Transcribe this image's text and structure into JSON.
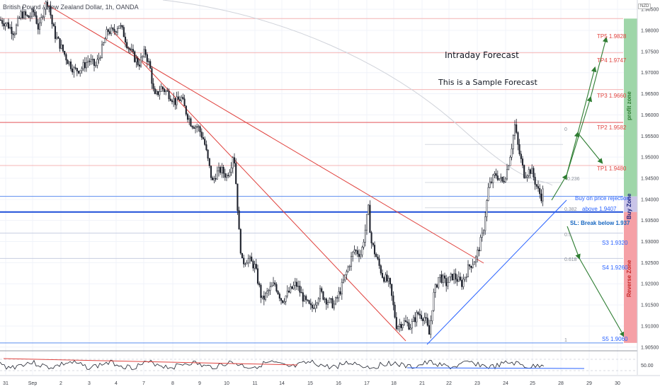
{
  "chart_data": {
    "type": "candlestick",
    "symbol_title": "British Pound / New Zealand Dollar, 1h, OANDA",
    "currency": "NZD",
    "ylim": [
      1.9048,
      1.9872
    ],
    "price_ticks": [
      "1.98500",
      "1.98000",
      "1.97500",
      "1.97000",
      "1.96500",
      "1.96000",
      "1.95500",
      "1.95000",
      "1.94500",
      "1.94000",
      "1.93500",
      "1.93000",
      "1.92500",
      "1.92000",
      "1.91500",
      "1.91000",
      "1.90500"
    ],
    "time_ticks": [
      "31",
      "Sep",
      "2",
      "3",
      "4",
      "7",
      "8",
      "9",
      "10",
      "11",
      "14",
      "15",
      "16",
      "17",
      "18",
      "21",
      "22",
      "23",
      "24",
      "25",
      "28",
      "29",
      "30"
    ],
    "price_path": [
      [
        0,
        1.9825
      ],
      [
        10,
        1.9815
      ],
      [
        20,
        1.9795
      ],
      [
        30,
        1.984
      ],
      [
        40,
        1.983
      ],
      [
        48,
        1.9845
      ],
      [
        55,
        1.98
      ],
      [
        62,
        1.9855
      ],
      [
        68,
        1.987
      ],
      [
        74,
        1.9812
      ],
      [
        78,
        1.9788
      ],
      [
        85,
        1.9765
      ],
      [
        95,
        1.973
      ],
      [
        105,
        1.9705
      ],
      [
        115,
        1.971
      ],
      [
        125,
        1.973
      ],
      [
        135,
        1.9715
      ],
      [
        145,
        1.976
      ],
      [
        152,
        1.98
      ],
      [
        160,
        1.9795
      ],
      [
        168,
        1.9815
      ],
      [
        175,
        1.979
      ],
      [
        180,
        1.9765
      ],
      [
        188,
        1.974
      ],
      [
        196,
        1.972
      ],
      [
        205,
        1.975
      ],
      [
        212,
        1.971
      ],
      [
        218,
        1.964
      ],
      [
        228,
        1.9665
      ],
      [
        238,
        1.965
      ],
      [
        248,
        1.963
      ],
      [
        256,
        1.964
      ],
      [
        262,
        1.961
      ],
      [
        270,
        1.958
      ],
      [
        280,
        1.957
      ],
      [
        288,
        1.954
      ],
      [
        295,
        1.948
      ],
      [
        300,
        1.944
      ],
      [
        305,
        1.946
      ],
      [
        312,
        1.947
      ],
      [
        320,
        1.9455
      ],
      [
        326,
        1.948
      ],
      [
        330,
        1.9515
      ],
      [
        334,
        1.942
      ],
      [
        338,
        1.931
      ],
      [
        342,
        1.925
      ],
      [
        350,
        1.926
      ],
      [
        360,
        1.924
      ],
      [
        370,
        1.916
      ],
      [
        378,
        1.918
      ],
      [
        388,
        1.92
      ],
      [
        398,
        1.916
      ],
      [
        408,
        1.918
      ],
      [
        418,
        1.92
      ],
      [
        430,
        1.916
      ],
      [
        440,
        1.914
      ],
      [
        452,
        1.918
      ],
      [
        462,
        1.916
      ],
      [
        472,
        1.915
      ],
      [
        482,
        1.919
      ],
      [
        492,
        1.924
      ],
      [
        500,
        1.928
      ],
      [
        510,
        1.927
      ],
      [
        516,
        1.933
      ],
      [
        520,
        1.938
      ],
      [
        524,
        1.93
      ],
      [
        530,
        1.927
      ],
      [
        540,
        1.922
      ],
      [
        550,
        1.92
      ],
      [
        560,
        1.91
      ],
      [
        570,
        1.911
      ],
      [
        580,
        1.91
      ],
      [
        590,
        1.913
      ],
      [
        600,
        1.912
      ],
      [
        606,
        1.908
      ],
      [
        612,
        1.917
      ],
      [
        620,
        1.922
      ],
      [
        630,
        1.92
      ],
      [
        640,
        1.922
      ],
      [
        652,
        1.92
      ],
      [
        662,
        1.924
      ],
      [
        672,
        1.926
      ],
      [
        682,
        1.932
      ],
      [
        690,
        1.943
      ],
      [
        700,
        1.946
      ],
      [
        710,
        1.944
      ],
      [
        716,
        1.947
      ],
      [
        722,
        1.952
      ],
      [
        727,
        1.9575
      ],
      [
        732,
        1.952
      ],
      [
        740,
        1.946
      ],
      [
        750,
        1.947
      ],
      [
        760,
        1.942
      ],
      [
        765,
        1.9405
      ],
      [
        768,
        1.943
      ]
    ],
    "levels": [
      {
        "name": "TP5",
        "label": "TP5 1.9828",
        "value": 1.9828
      },
      {
        "name": "TP4",
        "label": "TP4 1.9747",
        "value": 1.9747
      },
      {
        "name": "TP3",
        "label": "TP3 1.9660",
        "value": 1.966
      },
      {
        "name": "TP2",
        "label": "TP2 1.9582",
        "value": 1.9582
      },
      {
        "name": "TP1",
        "label": "TP1 1.9480",
        "value": 1.948
      },
      {
        "name": "Entry",
        "label": "above 1.9407",
        "value": 1.9407
      },
      {
        "name": "SL",
        "label": "SL: Break below 1.937",
        "value": 1.937
      },
      {
        "name": "S3",
        "label": "S3 1.9320",
        "value": 1.932
      },
      {
        "name": "S4",
        "label": "S4 1.9260",
        "value": 1.926
      },
      {
        "name": "S5",
        "label": "S5 1.9060",
        "value": 1.906
      }
    ],
    "fib_labels": [
      "0",
      "0.236",
      "0.382",
      "0.5",
      "0.618",
      "1"
    ],
    "indicator_tick": "50.00"
  },
  "annotations": {
    "title": "Intraday Forecast",
    "subtitle": "This is a Sample Forecast",
    "buy_note": "Buy on price rejection"
  },
  "zones": {
    "profit": {
      "label": "profit zone",
      "color": "#9fd6a9"
    },
    "buy": {
      "label": "Buy Zone",
      "color": "#c9c4e8"
    },
    "reverse": {
      "label": "Reverse Zone",
      "color": "#f5a0a6"
    }
  },
  "colors": {
    "target_line": "#f08a8a",
    "trendline_red": "#e0433f",
    "trendline_blue": "#2962ff",
    "arrow": "#2e7d32",
    "candle": "#1e222d"
  }
}
